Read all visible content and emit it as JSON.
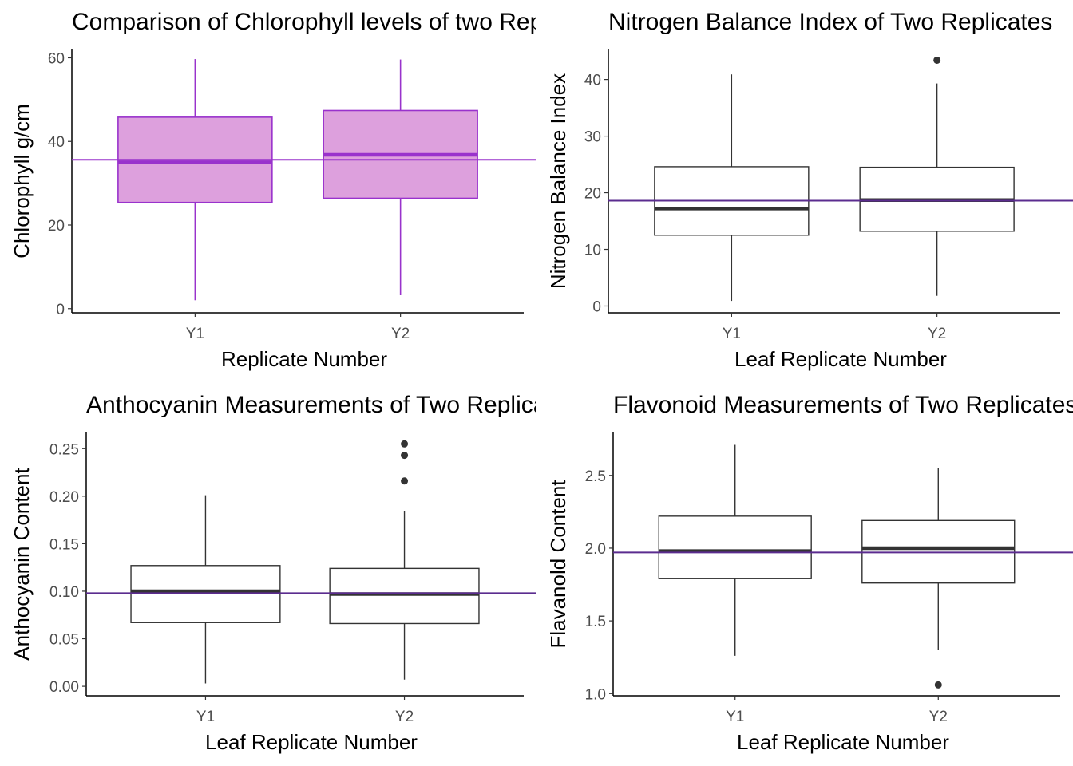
{
  "chart_data": [
    {
      "type": "box",
      "title": "Comparison of Chlorophyll levels of two Replicates",
      "xlabel": "Replicate Number",
      "ylabel": "Chlorophyll g/cm",
      "categories": [
        "Y1",
        "Y2"
      ],
      "yticks": [
        0,
        20,
        40,
        60
      ],
      "ylim": [
        -1,
        62
      ],
      "reference_line": 35.6,
      "box_fill": "#dda0dd",
      "box_color": "#9932cc",
      "line_color": "#9932cc",
      "boxes": [
        {
          "whisker_low": 2,
          "q1": 25.4,
          "median": 35,
          "q3": 45.8,
          "whisker_high": 59.7,
          "outliers": []
        },
        {
          "whisker_low": 3.2,
          "q1": 26.4,
          "median": 36.8,
          "q3": 47.4,
          "whisker_high": 59.6,
          "outliers": []
        }
      ]
    },
    {
      "type": "box",
      "title": "Nitrogen Balance Index of Two Replicates",
      "xlabel": "Leaf Replicate Number",
      "ylabel": "Nitrogen Balance Index",
      "categories": [
        "Y1",
        "Y2"
      ],
      "yticks": [
        0,
        10,
        20,
        30,
        40
      ],
      "ylim": [
        -1.2,
        45.3
      ],
      "reference_line": 18.6,
      "box_fill": "#ffffff",
      "box_color": "#333333",
      "line_color": "#5b2c8f",
      "boxes": [
        {
          "whisker_low": 0.9,
          "q1": 12.5,
          "median": 17.2,
          "q3": 24.6,
          "whisker_high": 40.9,
          "outliers": []
        },
        {
          "whisker_low": 1.8,
          "q1": 13.2,
          "median": 18.7,
          "q3": 24.5,
          "whisker_high": 39.3,
          "outliers": [
            43.4
          ]
        }
      ]
    },
    {
      "type": "box",
      "title": "Anthocyanin Measurements of Two Replicates",
      "xlabel": "Leaf Replicate Number",
      "ylabel": "Anthocyanin Content",
      "categories": [
        "Y1",
        "Y2"
      ],
      "ytick_labels": [
        "0.00",
        "0.05",
        "0.10",
        "0.15",
        "0.20",
        "0.25"
      ],
      "yticks": [
        0,
        0.05,
        0.1,
        0.15,
        0.2,
        0.25
      ],
      "ylim": [
        -0.01,
        0.267
      ],
      "reference_line": 0.098,
      "box_fill": "#ffffff",
      "box_color": "#333333",
      "line_color": "#5b2c8f",
      "boxes": [
        {
          "whisker_low": 0.003,
          "q1": 0.067,
          "median": 0.1,
          "q3": 0.127,
          "whisker_high": 0.201,
          "outliers": []
        },
        {
          "whisker_low": 0.007,
          "q1": 0.066,
          "median": 0.097,
          "q3": 0.124,
          "whisker_high": 0.184,
          "outliers": [
            0.216,
            0.243,
            0.255
          ]
        }
      ]
    },
    {
      "type": "box",
      "title": "Flavonoid Measurements of Two Replicates",
      "xlabel": "Leaf Replicate Number",
      "ylabel": "Flavanold Content",
      "categories": [
        "Y1",
        "Y2"
      ],
      "ytick_labels": [
        "1.0",
        "1.5",
        "2.0",
        "2.5"
      ],
      "yticks": [
        1.0,
        1.5,
        2.0,
        2.5
      ],
      "ylim": [
        0.985,
        2.795
      ],
      "reference_line": 1.97,
      "box_fill": "#ffffff",
      "box_color": "#333333",
      "line_color": "#5b2c8f",
      "boxes": [
        {
          "whisker_low": 1.26,
          "q1": 1.79,
          "median": 1.98,
          "q3": 2.22,
          "whisker_high": 2.71,
          "outliers": []
        },
        {
          "whisker_low": 1.3,
          "q1": 1.76,
          "median": 2.0,
          "q3": 2.19,
          "whisker_high": 2.55,
          "outliers": [
            1.06
          ]
        }
      ]
    }
  ]
}
